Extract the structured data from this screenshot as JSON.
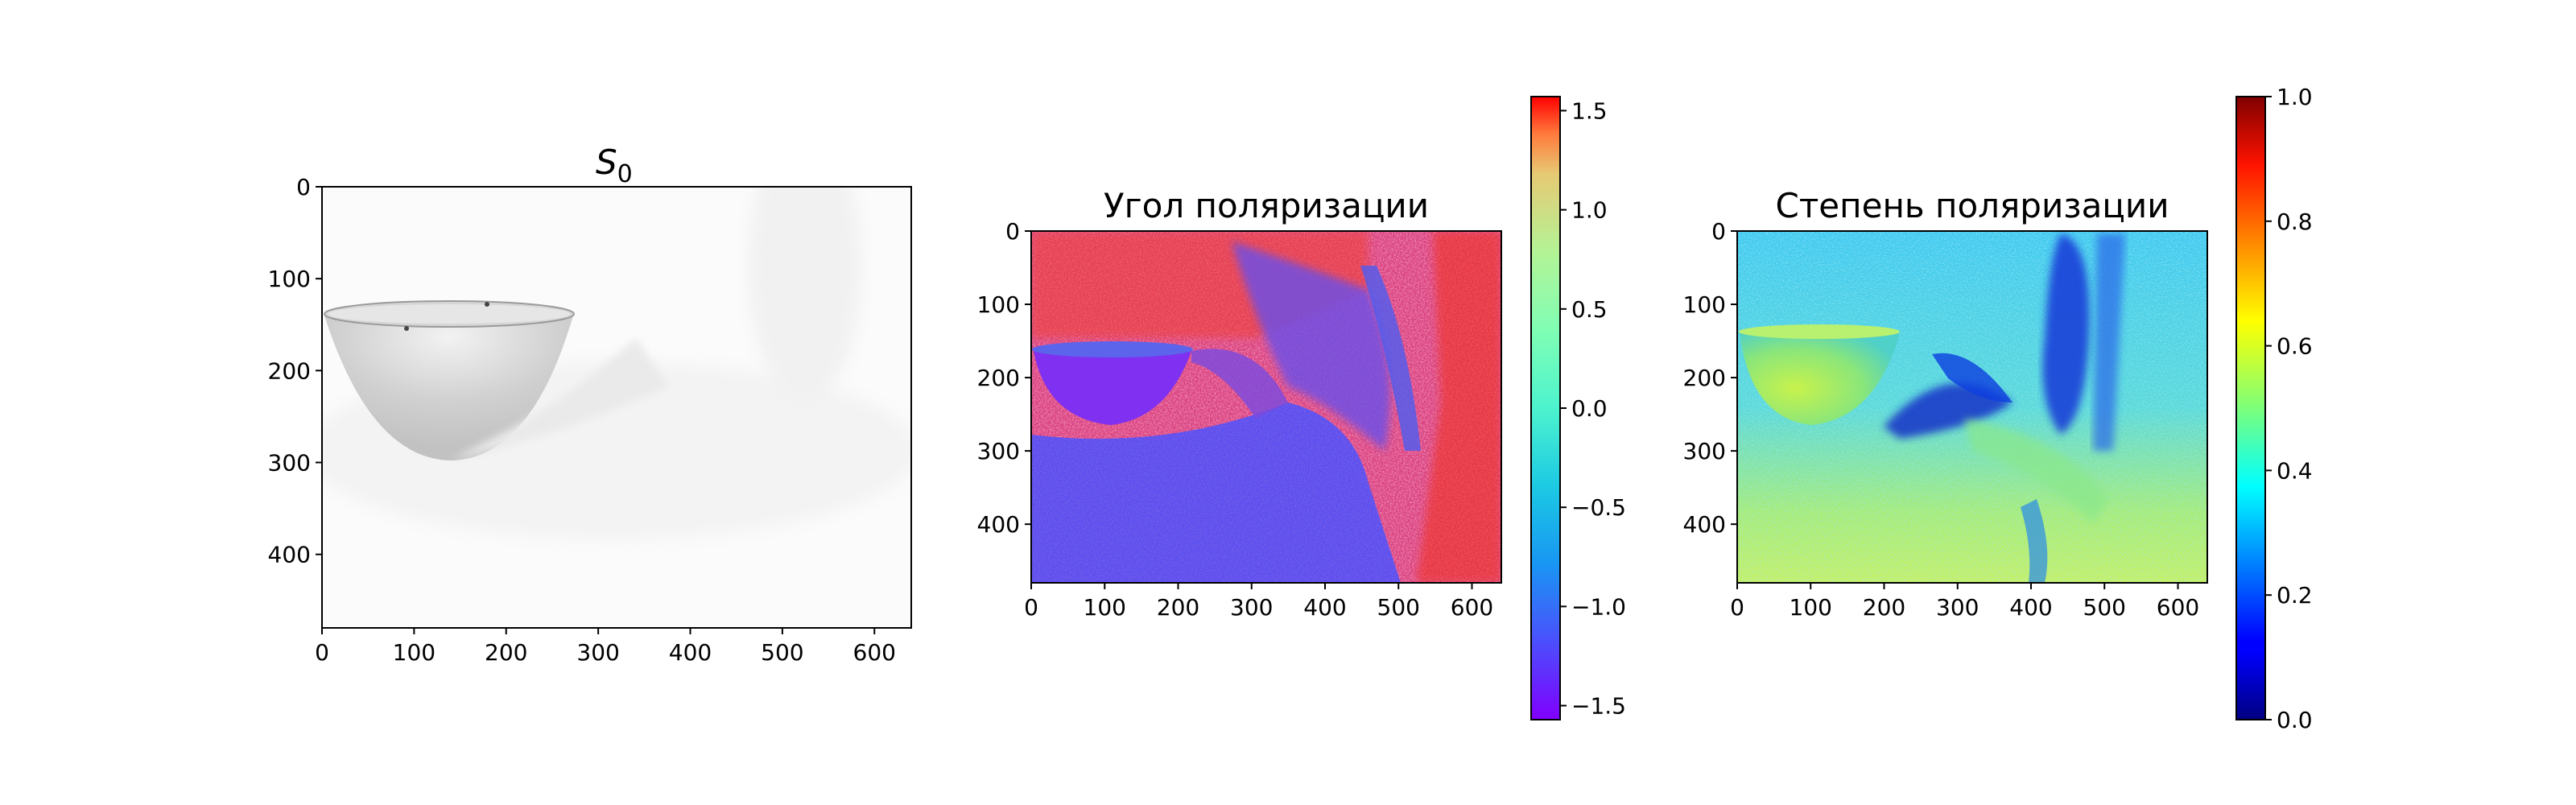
{
  "chart_data": [
    {
      "type": "heatmap",
      "title_main": "S",
      "title_sub": "0",
      "colormap": "gray-inverted",
      "xlim": [
        0,
        640
      ],
      "ylim": [
        480,
        0
      ],
      "xticks": [
        0,
        100,
        200,
        300,
        400,
        500,
        600
      ],
      "yticks": [
        0,
        100,
        200,
        300,
        400
      ],
      "x_tick_labels": [
        "0",
        "100",
        "200",
        "300",
        "400",
        "500",
        "600"
      ],
      "y_tick_labels": [
        "0",
        "100",
        "200",
        "300",
        "400"
      ]
    },
    {
      "type": "heatmap",
      "title": "Угол поляризации",
      "colormap": "rainbow",
      "xlim": [
        0,
        640
      ],
      "ylim": [
        480,
        0
      ],
      "xticks": [
        0,
        100,
        200,
        300,
        400,
        500,
        600
      ],
      "yticks": [
        0,
        100,
        200,
        300,
        400
      ],
      "x_tick_labels": [
        "0",
        "100",
        "200",
        "300",
        "400",
        "500",
        "600"
      ],
      "y_tick_labels": [
        "0",
        "100",
        "200",
        "300",
        "400"
      ],
      "colorbar": {
        "range": [
          -1.5708,
          1.5708
        ],
        "ticks": [
          -1.5,
          -1.0,
          -0.5,
          0.0,
          0.5,
          1.0,
          1.5
        ],
        "tick_labels": [
          "−1.5",
          "−1.0",
          "−0.5",
          "0.0",
          "0.5",
          "1.0",
          "1.5"
        ]
      }
    },
    {
      "type": "heatmap",
      "title": "Степень поляризации",
      "colormap": "jet",
      "xlim": [
        0,
        640
      ],
      "ylim": [
        480,
        0
      ],
      "xticks": [
        0,
        100,
        200,
        300,
        400,
        500,
        600
      ],
      "yticks": [
        0,
        100,
        200,
        300,
        400
      ],
      "x_tick_labels": [
        "0",
        "100",
        "200",
        "300",
        "400",
        "500",
        "600"
      ],
      "y_tick_labels": [
        "0",
        "100",
        "200",
        "300",
        "400"
      ],
      "colorbar": {
        "range": [
          0.0,
          1.0
        ],
        "ticks": [
          0.0,
          0.2,
          0.4,
          0.6,
          0.8,
          1.0
        ],
        "tick_labels": [
          "0.0",
          "0.2",
          "0.4",
          "0.6",
          "0.8",
          "1.0"
        ]
      }
    }
  ],
  "colors": {
    "axes": "#000000",
    "background": "#ffffff"
  }
}
